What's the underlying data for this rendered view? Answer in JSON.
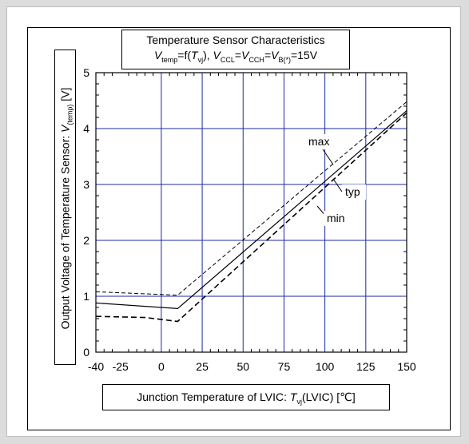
{
  "chart_data": {
    "type": "line",
    "title": "Temperature  Sensor Characteristics",
    "subtitle": {
      "v": "V",
      "v_sub": "temp",
      "eq": "=f(",
      "t": "T",
      "t_sub": "vj",
      "mid": "), ",
      "v2": "V",
      "v2_sub": "CCL",
      "eq2": "=",
      "v3": "V",
      "v3_sub": "CCH",
      "eq3": "=",
      "v4": "V",
      "v4_sub": "B(*)",
      "end": "=15V"
    },
    "xlabel": {
      "pre": "Junction Temperature  of LVIC: ",
      "t": "T",
      "t_sub": "vj",
      "post": "(LVIC) [℃]"
    },
    "ylabel": {
      "pre": "Output Voltage  of Temperature Sensor: ",
      "v": "V",
      "v_sub": "(temp)",
      "post": " [V]"
    },
    "xlim": [
      -40,
      150
    ],
    "ylim": [
      0,
      5
    ],
    "x_ticks": [
      -40,
      -25,
      0,
      25,
      50,
      75,
      100,
      125,
      150
    ],
    "y_ticks": [
      0,
      1,
      2,
      3,
      4,
      5
    ],
    "grid": true,
    "series": [
      {
        "name": "max",
        "style": "dashed-thin",
        "x": [
          -40,
          10,
          150
        ],
        "y": [
          1.08,
          1.02,
          4.48
        ]
      },
      {
        "name": "typ",
        "style": "solid",
        "x": [
          -40,
          10,
          150
        ],
        "y": [
          0.88,
          0.78,
          4.32
        ]
      },
      {
        "name": "min",
        "style": "dashed-thick",
        "x": [
          -40,
          -10,
          10,
          150
        ],
        "y": [
          0.64,
          0.62,
          0.55,
          4.28
        ]
      }
    ],
    "annotations": [
      {
        "text": "max",
        "series": "max"
      },
      {
        "text": "typ",
        "series": "typ"
      },
      {
        "text": "min",
        "series": "min"
      }
    ]
  },
  "colors": {
    "grid": "#1c2aa0",
    "line": "#000000",
    "frame_bg": "#ffffff",
    "page_bg": "#dcdcdc"
  }
}
